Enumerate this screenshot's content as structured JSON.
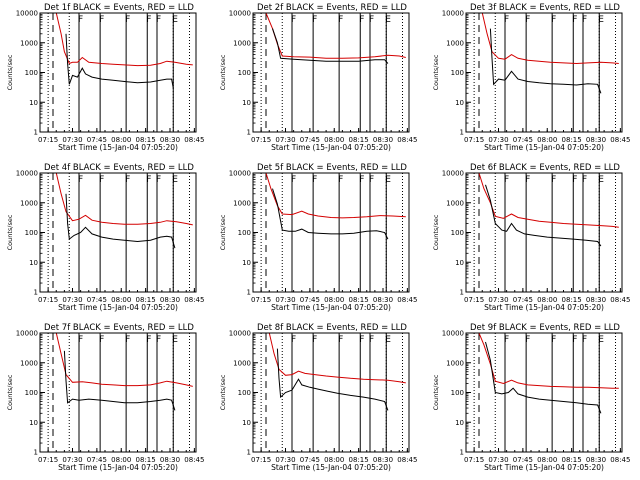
{
  "chart_data": {
    "type": "line",
    "y_scale": "log",
    "ylim": [
      1,
      10000
    ],
    "y_ticks": [
      "1",
      "10",
      "100",
      "1000",
      "10000"
    ],
    "ylabel": "Counts/sec",
    "xlabel": "Start Time (15-Jan-04 07:05:20)",
    "xlim": [
      "07:10",
      "08:46"
    ],
    "x_ticks": [
      "07:15",
      "07:30",
      "07:45",
      "08:00",
      "08:15",
      "08:30",
      "08:45"
    ],
    "legend_text": "BLACK = Events, RED = LLD",
    "series_colors": {
      "events": "#000000",
      "lld": "#d40000"
    },
    "dashed_marker": {
      "time": "07:18"
    },
    "dotted_markers": [
      {
        "time": "07:15"
      },
      {
        "time": "07:28"
      },
      {
        "time": "08:32"
      },
      {
        "time": "08:42"
      }
    ],
    "solid_markers": [
      {
        "time": "07:34",
        "label": "F"
      },
      {
        "time": "07:47",
        "label": "F"
      },
      {
        "time": "08:03",
        "label": "F"
      },
      {
        "time": "08:16",
        "label": "F"
      },
      {
        "time": "08:22",
        "label": "F"
      },
      {
        "time": "08:32",
        "label": "E"
      }
    ],
    "panels": [
      {
        "title": "Det 1f",
        "events": [
          [
            "07:26",
            2000
          ],
          [
            "07:27",
            200
          ],
          [
            "07:28",
            40
          ],
          [
            "07:30",
            80
          ],
          [
            "07:33",
            70
          ],
          [
            "07:36",
            140
          ],
          [
            "07:38",
            90
          ],
          [
            "07:42",
            70
          ],
          [
            "07:48",
            60
          ],
          [
            "07:55",
            55
          ],
          [
            "08:02",
            50
          ],
          [
            "08:10",
            45
          ],
          [
            "08:18",
            48
          ],
          [
            "08:24",
            55
          ],
          [
            "08:28",
            60
          ],
          [
            "08:31",
            60
          ],
          [
            "08:32",
            30
          ]
        ],
        "lld": [
          [
            "07:10",
            10000
          ],
          [
            "07:20",
            10000
          ],
          [
            "07:23",
            2000
          ],
          [
            "07:25",
            500
          ],
          [
            "07:28",
            200
          ],
          [
            "07:30",
            220
          ],
          [
            "07:33",
            220
          ],
          [
            "07:36",
            320
          ],
          [
            "07:40",
            220
          ],
          [
            "07:48",
            200
          ],
          [
            "07:55",
            190
          ],
          [
            "08:02",
            180
          ],
          [
            "08:10",
            170
          ],
          [
            "08:18",
            175
          ],
          [
            "08:24",
            200
          ],
          [
            "08:28",
            240
          ],
          [
            "08:33",
            220
          ],
          [
            "08:40",
            190
          ],
          [
            "08:44",
            180
          ]
        ]
      },
      {
        "title": "Det 2f",
        "events": [
          [
            "07:22",
            3000
          ],
          [
            "07:25",
            1000
          ],
          [
            "07:27",
            300
          ],
          [
            "07:35",
            280
          ],
          [
            "07:45",
            260
          ],
          [
            "07:55",
            240
          ],
          [
            "08:05",
            240
          ],
          [
            "08:15",
            240
          ],
          [
            "08:25",
            270
          ],
          [
            "08:31",
            270
          ],
          [
            "08:33",
            200
          ]
        ],
        "lld": [
          [
            "07:10",
            10000
          ],
          [
            "07:18",
            10000
          ],
          [
            "07:22",
            3000
          ],
          [
            "07:25",
            900
          ],
          [
            "07:28",
            360
          ],
          [
            "07:35",
            340
          ],
          [
            "07:45",
            330
          ],
          [
            "07:55",
            300
          ],
          [
            "08:05",
            300
          ],
          [
            "08:15",
            310
          ],
          [
            "08:25",
            340
          ],
          [
            "08:33",
            380
          ],
          [
            "08:40",
            360
          ],
          [
            "08:44",
            320
          ]
        ]
      },
      {
        "title": "Det 3f",
        "events": [
          [
            "07:25",
            3000
          ],
          [
            "07:26",
            300
          ],
          [
            "07:27",
            40
          ],
          [
            "07:30",
            60
          ],
          [
            "07:34",
            55
          ],
          [
            "07:38",
            110
          ],
          [
            "07:42",
            60
          ],
          [
            "07:48",
            50
          ],
          [
            "07:55",
            45
          ],
          [
            "08:02",
            42
          ],
          [
            "08:10",
            40
          ],
          [
            "08:18",
            38
          ],
          [
            "08:25",
            42
          ],
          [
            "08:31",
            40
          ],
          [
            "08:33",
            20
          ]
        ],
        "lld": [
          [
            "07:10",
            10000
          ],
          [
            "07:20",
            10000
          ],
          [
            "07:23",
            2000
          ],
          [
            "07:26",
            500
          ],
          [
            "07:30",
            300
          ],
          [
            "07:34",
            280
          ],
          [
            "07:38",
            400
          ],
          [
            "07:42",
            300
          ],
          [
            "07:48",
            260
          ],
          [
            "07:55",
            240
          ],
          [
            "08:02",
            220
          ],
          [
            "08:10",
            210
          ],
          [
            "08:18",
            200
          ],
          [
            "08:25",
            210
          ],
          [
            "08:33",
            220
          ],
          [
            "08:40",
            210
          ],
          [
            "08:44",
            200
          ]
        ]
      },
      {
        "title": "Det 4f",
        "events": [
          [
            "07:26",
            2000
          ],
          [
            "07:27",
            200
          ],
          [
            "07:28",
            60
          ],
          [
            "07:31",
            80
          ],
          [
            "07:35",
            100
          ],
          [
            "07:38",
            150
          ],
          [
            "07:42",
            90
          ],
          [
            "07:48",
            70
          ],
          [
            "07:55",
            60
          ],
          [
            "08:02",
            55
          ],
          [
            "08:10",
            50
          ],
          [
            "08:18",
            55
          ],
          [
            "08:24",
            70
          ],
          [
            "08:28",
            75
          ],
          [
            "08:31",
            70
          ],
          [
            "08:33",
            30
          ]
        ],
        "lld": [
          [
            "07:10",
            10000
          ],
          [
            "07:20",
            10000
          ],
          [
            "07:23",
            2000
          ],
          [
            "07:26",
            500
          ],
          [
            "07:30",
            250
          ],
          [
            "07:34",
            280
          ],
          [
            "07:38",
            380
          ],
          [
            "07:42",
            260
          ],
          [
            "07:48",
            220
          ],
          [
            "07:55",
            200
          ],
          [
            "08:02",
            190
          ],
          [
            "08:10",
            190
          ],
          [
            "08:18",
            200
          ],
          [
            "08:24",
            220
          ],
          [
            "08:28",
            250
          ],
          [
            "08:34",
            230
          ],
          [
            "08:40",
            200
          ],
          [
            "08:44",
            180
          ]
        ]
      },
      {
        "title": "Det 5f",
        "events": [
          [
            "07:22",
            3000
          ],
          [
            "07:25",
            900
          ],
          [
            "07:28",
            120
          ],
          [
            "07:32",
            110
          ],
          [
            "07:36",
            110
          ],
          [
            "07:40",
            130
          ],
          [
            "07:44",
            100
          ],
          [
            "07:50",
            95
          ],
          [
            "07:58",
            90
          ],
          [
            "08:05",
            90
          ],
          [
            "08:12",
            95
          ],
          [
            "08:20",
            110
          ],
          [
            "08:26",
            115
          ],
          [
            "08:31",
            100
          ],
          [
            "08:33",
            60
          ]
        ],
        "lld": [
          [
            "07:10",
            10000
          ],
          [
            "07:18",
            10000
          ],
          [
            "07:21",
            3000
          ],
          [
            "07:25",
            800
          ],
          [
            "07:28",
            420
          ],
          [
            "07:34",
            400
          ],
          [
            "07:40",
            520
          ],
          [
            "07:44",
            420
          ],
          [
            "07:50",
            360
          ],
          [
            "07:58",
            320
          ],
          [
            "08:05",
            310
          ],
          [
            "08:12",
            320
          ],
          [
            "08:20",
            340
          ],
          [
            "08:28",
            370
          ],
          [
            "08:36",
            360
          ],
          [
            "08:44",
            340
          ]
        ]
      },
      {
        "title": "Det 6f",
        "events": [
          [
            "07:22",
            4000
          ],
          [
            "07:25",
            1200
          ],
          [
            "07:28",
            200
          ],
          [
            "07:32",
            120
          ],
          [
            "07:35",
            110
          ],
          [
            "07:38",
            200
          ],
          [
            "07:41",
            120
          ],
          [
            "07:46",
            90
          ],
          [
            "07:52",
            80
          ],
          [
            "08:00",
            70
          ],
          [
            "08:08",
            65
          ],
          [
            "08:16",
            60
          ],
          [
            "08:24",
            55
          ],
          [
            "08:31",
            50
          ],
          [
            "08:33",
            35
          ]
        ],
        "lld": [
          [
            "07:10",
            10000
          ],
          [
            "07:18",
            10000
          ],
          [
            "07:21",
            3000
          ],
          [
            "07:25",
            1000
          ],
          [
            "07:28",
            350
          ],
          [
            "07:33",
            300
          ],
          [
            "07:38",
            420
          ],
          [
            "07:42",
            320
          ],
          [
            "07:48",
            280
          ],
          [
            "07:55",
            240
          ],
          [
            "08:02",
            220
          ],
          [
            "08:10",
            200
          ],
          [
            "08:18",
            190
          ],
          [
            "08:25",
            180
          ],
          [
            "08:33",
            170
          ],
          [
            "08:40",
            160
          ],
          [
            "08:44",
            150
          ]
        ]
      },
      {
        "title": "Det 7f",
        "events": [
          [
            "07:25",
            2500
          ],
          [
            "07:26",
            250
          ],
          [
            "07:27",
            45
          ],
          [
            "07:30",
            60
          ],
          [
            "07:34",
            55
          ],
          [
            "07:40",
            60
          ],
          [
            "07:48",
            55
          ],
          [
            "07:55",
            50
          ],
          [
            "08:02",
            45
          ],
          [
            "08:10",
            45
          ],
          [
            "08:18",
            50
          ],
          [
            "08:24",
            55
          ],
          [
            "08:28",
            60
          ],
          [
            "08:31",
            55
          ],
          [
            "08:33",
            25
          ]
        ],
        "lld": [
          [
            "07:10",
            10000
          ],
          [
            "07:20",
            10000
          ],
          [
            "07:23",
            2000
          ],
          [
            "07:26",
            400
          ],
          [
            "07:30",
            220
          ],
          [
            "07:36",
            230
          ],
          [
            "07:42",
            210
          ],
          [
            "07:48",
            190
          ],
          [
            "07:55",
            180
          ],
          [
            "08:02",
            170
          ],
          [
            "08:10",
            170
          ],
          [
            "08:18",
            180
          ],
          [
            "08:24",
            210
          ],
          [
            "08:28",
            240
          ],
          [
            "08:34",
            210
          ],
          [
            "08:40",
            180
          ],
          [
            "08:44",
            160
          ]
        ]
      },
      {
        "title": "Det 8f",
        "events": [
          [
            "07:25",
            3000
          ],
          [
            "07:26",
            300
          ],
          [
            "07:27",
            70
          ],
          [
            "07:30",
            100
          ],
          [
            "07:34",
            120
          ],
          [
            "07:38",
            280
          ],
          [
            "07:40",
            180
          ],
          [
            "07:45",
            150
          ],
          [
            "07:50",
            130
          ],
          [
            "07:56",
            110
          ],
          [
            "08:02",
            95
          ],
          [
            "08:10",
            80
          ],
          [
            "08:18",
            70
          ],
          [
            "08:25",
            60
          ],
          [
            "08:31",
            50
          ],
          [
            "08:33",
            25
          ]
        ],
        "lld": [
          [
            "07:10",
            10000
          ],
          [
            "07:20",
            10000
          ],
          [
            "07:23",
            2000
          ],
          [
            "07:26",
            600
          ],
          [
            "07:30",
            380
          ],
          [
            "07:34",
            400
          ],
          [
            "07:38",
            520
          ],
          [
            "07:42",
            440
          ],
          [
            "07:48",
            400
          ],
          [
            "07:55",
            360
          ],
          [
            "08:02",
            330
          ],
          [
            "08:10",
            300
          ],
          [
            "08:18",
            280
          ],
          [
            "08:25",
            270
          ],
          [
            "08:33",
            260
          ],
          [
            "08:40",
            230
          ],
          [
            "08:44",
            210
          ]
        ]
      },
      {
        "title": "Det 9f",
        "events": [
          [
            "07:22",
            5000
          ],
          [
            "07:25",
            1200
          ],
          [
            "07:28",
            100
          ],
          [
            "07:32",
            90
          ],
          [
            "07:36",
            100
          ],
          [
            "07:39",
            140
          ],
          [
            "07:42",
            90
          ],
          [
            "07:48",
            70
          ],
          [
            "07:55",
            60
          ],
          [
            "08:02",
            55
          ],
          [
            "08:10",
            50
          ],
          [
            "08:18",
            45
          ],
          [
            "08:25",
            40
          ],
          [
            "08:31",
            38
          ],
          [
            "08:33",
            20
          ]
        ],
        "lld": [
          [
            "07:10",
            10000
          ],
          [
            "07:18",
            10000
          ],
          [
            "07:21",
            4000
          ],
          [
            "07:25",
            900
          ],
          [
            "07:28",
            240
          ],
          [
            "07:33",
            200
          ],
          [
            "07:38",
            260
          ],
          [
            "07:42",
            210
          ],
          [
            "07:48",
            180
          ],
          [
            "07:55",
            170
          ],
          [
            "08:02",
            160
          ],
          [
            "08:10",
            155
          ],
          [
            "08:18",
            150
          ],
          [
            "08:25",
            150
          ],
          [
            "08:33",
            145
          ],
          [
            "08:40",
            140
          ],
          [
            "08:44",
            140
          ]
        ]
      }
    ]
  }
}
